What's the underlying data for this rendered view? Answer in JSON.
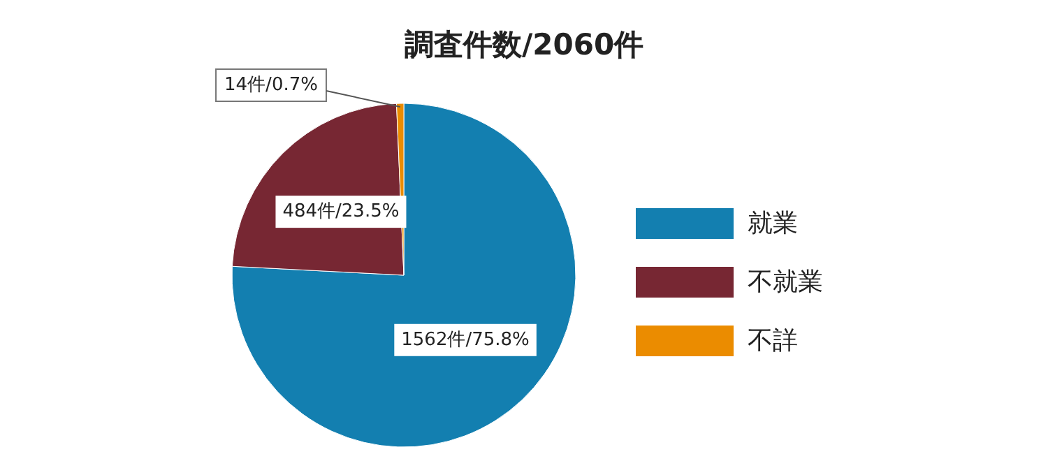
{
  "chart_data": {
    "type": "pie",
    "title": "調査件数/2060件",
    "categories": [
      "就業",
      "不就業",
      "不詳"
    ],
    "values": [
      1562,
      484,
      14
    ],
    "colors": [
      "#137fb0",
      "#772733",
      "#eb8c00"
    ],
    "value_labels": [
      "1562件/75.8%",
      "484件/23.5%",
      "14件/0.7%"
    ],
    "legend": "right"
  }
}
